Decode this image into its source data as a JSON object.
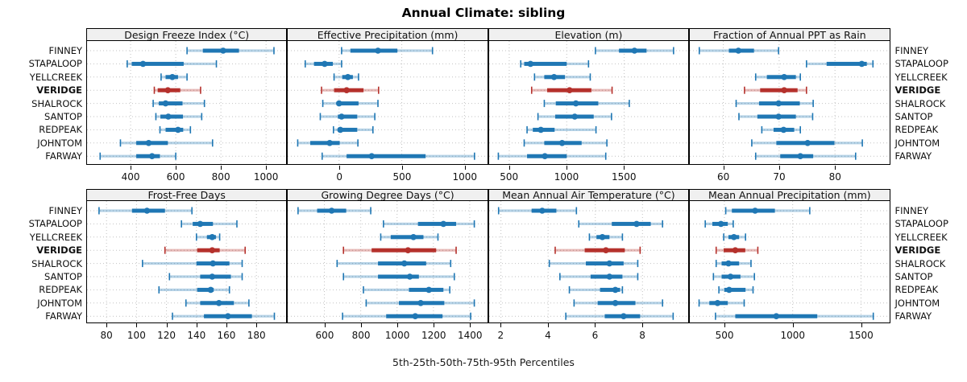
{
  "title": "Annual Climate: sibling",
  "caption": "5th-25th-50th-75th-95th Percentiles",
  "sites": [
    "FINNEY",
    "STAPALOOP",
    "YELLCREEK",
    "VERIDGE",
    "SHALROCK",
    "SANTOP",
    "REDPEAK",
    "JOHNTOM",
    "FARWAY"
  ],
  "highlight_site": "VERIDGE",
  "colors": {
    "series": "#1f77b4",
    "highlight": "#b5312c",
    "band_opacity": 0.33,
    "grid": "#c2c2c2",
    "header_bg": "#f0f0f0",
    "border": "#000000"
  },
  "chart_data": {
    "type": "scatter",
    "subtype": "percentile-interval-dotplot (trellis, 2x4 panels)",
    "percentile_keys": [
      "5th",
      "25th",
      "50th",
      "75th",
      "95th"
    ],
    "legend": "dot = median, thick bar = 25th-75th, light band with caps = 5th-95th",
    "grid": "dotted",
    "panels": [
      {
        "title": "Design Freeze Index (°C)",
        "row": 0,
        "col": 0,
        "xlim": [
          207,
          1090
        ],
        "ticks": [
          400,
          600,
          800,
          1000
        ],
        "values": {
          "FINNEY": [
            650,
            720,
            810,
            880,
            1035
          ],
          "STAPALOOP": [
            385,
            405,
            455,
            635,
            780
          ],
          "YELLCREEK": [
            535,
            555,
            585,
            610,
            650
          ],
          "VERIDGE": [
            505,
            520,
            565,
            620,
            710
          ],
          "SHALROCK": [
            500,
            525,
            555,
            630,
            727
          ],
          "SANTOP": [
            512,
            532,
            567,
            632,
            715
          ],
          "REDPEAK": [
            530,
            555,
            610,
            633,
            665
          ],
          "JOHNTOM": [
            355,
            425,
            480,
            565,
            763
          ],
          "FARWAY": [
            265,
            425,
            495,
            530,
            600
          ]
        }
      },
      {
        "title": "Effective Precipitation (mm)",
        "row": 0,
        "col": 1,
        "xlim": [
          -410,
          1180
        ],
        "ticks": [
          0,
          500,
          1000
        ],
        "values": {
          "FINNEY": [
            20,
            90,
            310,
            465,
            745
          ],
          "STAPALOOP": [
            -270,
            -200,
            -115,
            -50,
            20
          ],
          "YELLCREEK": [
            -40,
            25,
            70,
            110,
            155
          ],
          "VERIDGE": [
            -140,
            -40,
            60,
            195,
            315
          ],
          "SHALROCK": [
            -130,
            -20,
            0,
            155,
            310
          ],
          "SANTOP": [
            -150,
            -10,
            20,
            145,
            285
          ],
          "REDPEAK": [
            -45,
            -10,
            10,
            145,
            270
          ],
          "JOHNTOM": [
            -330,
            -230,
            -75,
            5,
            150
          ],
          "FARWAY": [
            -135,
            60,
            260,
            690,
            1080
          ]
        }
      },
      {
        "title": "Elevation (m)",
        "row": 0,
        "col": 2,
        "xlim": [
          325,
          2060
        ],
        "ticks": [
          500,
          1000,
          1500
        ],
        "values": {
          "FINNEY": [
            1250,
            1455,
            1590,
            1695,
            1930
          ],
          "STAPALOOP": [
            600,
            630,
            685,
            1000,
            1190
          ],
          "YELLCREEK": [
            720,
            805,
            890,
            985,
            1205
          ],
          "VERIDGE": [
            695,
            830,
            1025,
            1215,
            1395
          ],
          "SHALROCK": [
            805,
            905,
            1080,
            1275,
            1545
          ],
          "SANTOP": [
            750,
            900,
            1070,
            1235,
            1390
          ],
          "REDPEAK": [
            655,
            705,
            775,
            895,
            1255
          ],
          "JOHNTOM": [
            630,
            805,
            960,
            1130,
            1350
          ],
          "FARWAY": [
            405,
            655,
            810,
            1000,
            1340
          ]
        }
      },
      {
        "title": "Fraction of Annual PPT as Rain",
        "row": 0,
        "col": 3,
        "xlim": [
          54,
          89.7
        ],
        "ticks": [
          60,
          70,
          80
        ],
        "values": {
          "FINNEY": [
            55.7,
            61.0,
            62.7,
            65.5,
            69.9
          ],
          "STAPALOOP": [
            74.9,
            78.5,
            84.8,
            85.7,
            86.8
          ],
          "YELLCREEK": [
            65.8,
            67.8,
            70.9,
            73.0,
            73.8
          ],
          "VERIDGE": [
            63.8,
            66.6,
            70.9,
            73.3,
            74.9
          ],
          "SHALROCK": [
            62.3,
            66.4,
            69.9,
            73.7,
            76.1
          ],
          "SANTOP": [
            62.8,
            66.1,
            69.9,
            73.0,
            76.0
          ],
          "REDPEAK": [
            66.9,
            69.0,
            70.8,
            72.7,
            73.8
          ],
          "JOHNTOM": [
            65.1,
            69.5,
            75.1,
            79.9,
            84.9
          ],
          "FARWAY": [
            65.8,
            70.2,
            73.8,
            76.1,
            83.7
          ]
        }
      },
      {
        "title": "Frost-Free Days",
        "row": 1,
        "col": 0,
        "xlim": [
          67,
          200
        ],
        "ticks": [
          80,
          100,
          120,
          140,
          160,
          180
        ],
        "values": {
          "FINNEY": [
            75,
            97,
            107,
            119,
            137
          ],
          "STAPALOOP": [
            130,
            137.5,
            142.5,
            151,
            167
          ],
          "YELLCREEK": [
            140,
            147,
            150.5,
            153,
            155.5
          ],
          "VERIDGE": [
            119,
            140.5,
            150.5,
            155.5,
            172.5
          ],
          "SHALROCK": [
            104,
            140,
            151,
            162,
            170.5
          ],
          "SANTOP": [
            122,
            142.5,
            150.5,
            163,
            170.5
          ],
          "REDPEAK": [
            115,
            140.5,
            149.5,
            151.5,
            162
          ],
          "JOHNTOM": [
            133,
            142.5,
            155,
            165,
            175
          ],
          "FARWAY": [
            124,
            145,
            161,
            177,
            192
          ]
        }
      },
      {
        "title": "Growing Degree Days (°C)",
        "row": 1,
        "col": 1,
        "xlim": [
          398,
          1495
        ],
        "ticks": [
          600,
          800,
          1000,
          1200,
          1400
        ],
        "values": {
          "FINNEY": [
            455,
            560,
            640,
            720,
            855
          ],
          "STAPALOOP": [
            925,
            1115,
            1255,
            1325,
            1425
          ],
          "YELLCREEK": [
            910,
            965,
            1090,
            1145,
            1225
          ],
          "VERIDGE": [
            705,
            860,
            1060,
            1215,
            1325
          ],
          "SHALROCK": [
            670,
            895,
            1040,
            1160,
            1295
          ],
          "SANTOP": [
            705,
            895,
            1070,
            1120,
            1315
          ],
          "REDPEAK": [
            815,
            1065,
            1175,
            1255,
            1290
          ],
          "JOHNTOM": [
            830,
            1010,
            1130,
            1260,
            1425
          ],
          "FARWAY": [
            700,
            940,
            1100,
            1250,
            1405
          ]
        }
      },
      {
        "title": "Mean Annual Air Temperature (°C)",
        "row": 1,
        "col": 2,
        "xlim": [
          1.5,
          9.95
        ],
        "ticks": [
          2,
          4,
          6,
          8
        ],
        "values": {
          "FINNEY": [
            1.9,
            3.3,
            3.75,
            4.35,
            5.2
          ],
          "STAPALOOP": [
            5.3,
            6.7,
            7.75,
            8.35,
            8.85
          ],
          "YELLCREEK": [
            5.75,
            6.05,
            6.3,
            6.6,
            7.15
          ],
          "VERIDGE": [
            4.3,
            5.55,
            6.45,
            7.25,
            7.9
          ],
          "SHALROCK": [
            4.05,
            5.6,
            6.6,
            7.2,
            7.8
          ],
          "SANTOP": [
            4.5,
            5.8,
            6.6,
            7.15,
            7.8
          ],
          "REDPEAK": [
            4.9,
            6.2,
            6.85,
            7.05,
            7.15
          ],
          "JOHNTOM": [
            5.1,
            6.1,
            6.85,
            7.7,
            8.85
          ],
          "FARWAY": [
            4.75,
            6.4,
            7.2,
            7.9,
            9.3
          ]
        }
      },
      {
        "title": "Mean Annual Precipitation (mm)",
        "row": 1,
        "col": 3,
        "xlim": [
          247,
          1706
        ],
        "ticks": [
          500,
          1000,
          1500
        ],
        "values": {
          "FINNEY": [
            510,
            555,
            725,
            870,
            1125
          ],
          "STAPALOOP": [
            360,
            412,
            475,
            525,
            565
          ],
          "YELLCREEK": [
            495,
            530,
            570,
            608,
            655
          ],
          "VERIDGE": [
            440,
            495,
            580,
            653,
            745
          ],
          "SHALROCK": [
            440,
            480,
            530,
            608,
            695
          ],
          "SANTOP": [
            420,
            480,
            545,
            618,
            720
          ],
          "REDPEAK": [
            460,
            500,
            535,
            655,
            710
          ],
          "JOHNTOM": [
            315,
            390,
            450,
            525,
            645
          ],
          "FARWAY": [
            435,
            580,
            880,
            1180,
            1590
          ]
        }
      }
    ]
  }
}
